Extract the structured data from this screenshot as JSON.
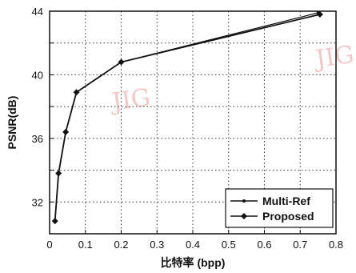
{
  "chart_data": {
    "type": "line",
    "xlabel": "比特率 (bpp)",
    "ylabel": "PSNR(dB)",
    "xlim": [
      0,
      0.8
    ],
    "ylim": [
      30,
      44
    ],
    "xticks": [
      "0",
      "0.1",
      "0.2",
      "0.3",
      "0.4",
      "0.5",
      "0.6",
      "0.7",
      "0.8"
    ],
    "yticks": [
      "32",
      "36",
      "40",
      "44"
    ],
    "grid": "dotted",
    "legend_position": "bottom-right",
    "watermark": "JIG",
    "series": [
      {
        "name": "Multi-Ref",
        "marker": "dot",
        "color": "#111111",
        "x": [
          0.015,
          0.025,
          0.045,
          0.075,
          0.2,
          0.75
        ],
        "y": [
          30.8,
          33.8,
          36.4,
          38.9,
          40.8,
          43.9
        ]
      },
      {
        "name": "Proposed",
        "marker": "diamond",
        "color": "#111111",
        "x": [
          0.015,
          0.025,
          0.045,
          0.075,
          0.2,
          0.755
        ],
        "y": [
          30.8,
          33.8,
          36.4,
          38.9,
          40.8,
          43.8
        ]
      }
    ]
  }
}
